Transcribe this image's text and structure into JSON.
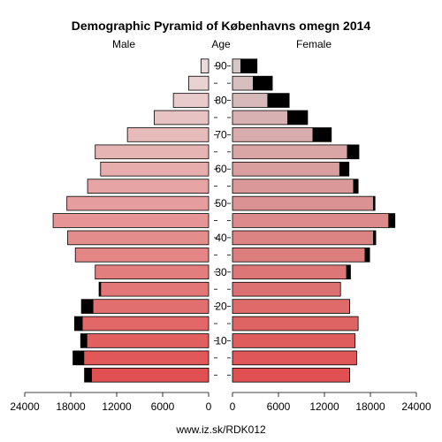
{
  "chart_data": {
    "type": "bar",
    "title": "Demographic Pyramid of Københavns omegn 2014",
    "left_label": "Male",
    "center_label": "Age",
    "right_label": "Female",
    "source": "www.iz.sk/RDK012",
    "age_ticks": [
      "10",
      "20",
      "30",
      "40",
      "50",
      "60",
      "70",
      "80",
      "90"
    ],
    "x_ticks_left": [
      "24000",
      "18000",
      "12000",
      "6000",
      "0"
    ],
    "x_ticks_right": [
      "0",
      "6000",
      "12000",
      "18000",
      "24000"
    ],
    "xlim": [
      0,
      24000
    ],
    "series": [
      {
        "name": "Male",
        "side": "left",
        "age_groups": [
          "0-4",
          "5-9",
          "10-14",
          "15-19",
          "20-24",
          "25-29",
          "30-34",
          "35-39",
          "40-44",
          "45-49",
          "50-54",
          "55-59",
          "60-64",
          "65-69",
          "70-74",
          "75-79",
          "80-84",
          "85-89",
          "90+"
        ],
        "base": [
          15300,
          16300,
          15900,
          16500,
          15100,
          14100,
          14800,
          17400,
          18400,
          20300,
          18500,
          15800,
          14100,
          14800,
          10600,
          7100,
          4600,
          2600,
          1000
        ],
        "excess": [
          900,
          1400,
          800,
          1000,
          1500,
          200,
          0,
          0,
          0,
          0,
          0,
          0,
          0,
          0,
          0,
          0,
          0,
          0,
          0
        ]
      },
      {
        "name": "Female",
        "side": "right",
        "age_groups": [
          "0-4",
          "5-9",
          "10-14",
          "15-19",
          "20-24",
          "25-29",
          "30-34",
          "35-39",
          "40-44",
          "45-49",
          "50-54",
          "55-59",
          "60-64",
          "65-69",
          "70-74",
          "75-79",
          "80-84",
          "85-89",
          "90+"
        ],
        "base": [
          15300,
          16200,
          16000,
          16400,
          15300,
          14100,
          14900,
          17300,
          18400,
          20400,
          18400,
          15800,
          14000,
          15000,
          10500,
          7200,
          4600,
          2700,
          1100
        ],
        "excess": [
          0,
          0,
          0,
          0,
          0,
          0,
          500,
          600,
          300,
          800,
          200,
          600,
          1200,
          1500,
          2400,
          2600,
          2800,
          2500,
          2100
        ]
      }
    ],
    "colors": {
      "excess": "#000000",
      "outline": "#000000",
      "male_fill_young": "#e05050",
      "male_fill_old": "#eadada",
      "female_fill_young": "#e05050",
      "female_fill_old": "#d6c6c6"
    }
  }
}
